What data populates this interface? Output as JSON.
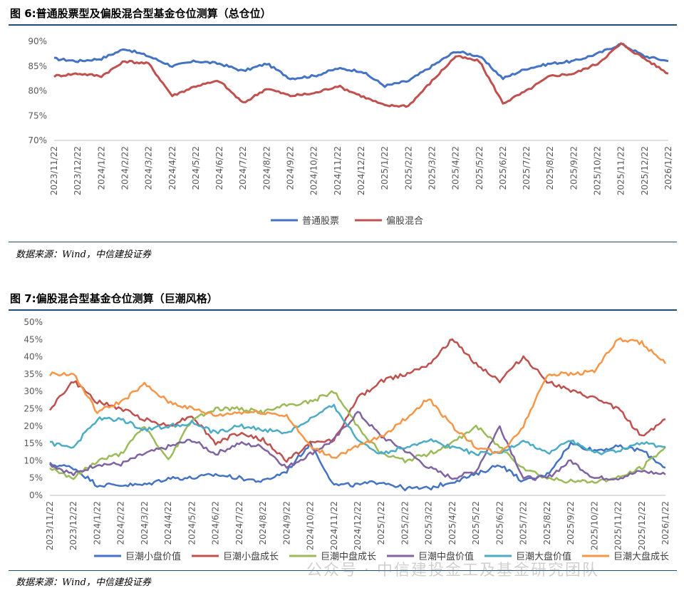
{
  "figures": {
    "fig6_title": "图 6:普通股票型及偏股混合型基金仓位测算（总仓位）",
    "fig7_title": "图 7:偏股混合型基金仓位测算（巨潮风格）",
    "source_text": "数据来源：Wind，中信建投证券"
  },
  "watermark": "公众号 · 中信建投金工及基金研究团队",
  "chart_data": [
    {
      "type": "line",
      "title": "图 6:普通股票型及偏股混合型基金仓位测算（总仓位）",
      "x": [
        "2023/11/22",
        "2023/12/22",
        "2024/1/22",
        "2024/2/22",
        "2024/3/22",
        "2024/4/22",
        "2024/5/22",
        "2024/6/22",
        "2024/7/22",
        "2024/8/22",
        "2024/9/22",
        "2024/10/22",
        "2024/11/22",
        "2024/12/22",
        "2025/1/22",
        "2025/2/22",
        "2025/3/22",
        "2025/4/22",
        "2025/5/22",
        "2025/6/22",
        "2025/7/22",
        "2025/8/22",
        "2025/9/22",
        "2025/10/22",
        "2025/11/22",
        "2025/12/22",
        "2026/1/22"
      ],
      "y_ticks": [
        "70%",
        "75%",
        "80%",
        "85%",
        "90%"
      ],
      "ylim": [
        70,
        90
      ],
      "legend_position": "bottom",
      "series": [
        {
          "name": "普通股票",
          "color": "#4472c4",
          "values": [
            86.5,
            86.0,
            86.5,
            88.5,
            87.0,
            85.0,
            86.0,
            85.5,
            84.0,
            85.5,
            82.5,
            83.0,
            84.5,
            84.0,
            81.0,
            82.0,
            85.0,
            88.0,
            87.0,
            82.5,
            84.5,
            85.5,
            86.0,
            87.5,
            89.5,
            87.0,
            86.0
          ]
        },
        {
          "name": "偏股混合",
          "color": "#c0504d",
          "values": [
            83.0,
            83.5,
            83.0,
            86.0,
            85.5,
            79.0,
            81.0,
            82.0,
            77.5,
            80.5,
            79.0,
            79.5,
            81.0,
            79.0,
            77.0,
            77.0,
            82.0,
            87.0,
            86.0,
            77.5,
            80.0,
            83.0,
            83.5,
            85.5,
            89.5,
            86.5,
            83.5
          ]
        }
      ]
    },
    {
      "type": "line",
      "title": "图 7:偏股混合型基金仓位测算（巨潮风格）",
      "x": [
        "2023/11/22",
        "2023/12/22",
        "2024/1/22",
        "2024/2/22",
        "2024/3/22",
        "2024/4/22",
        "2024/5/22",
        "2024/6/22",
        "2024/7/22",
        "2024/8/22",
        "2024/9/22",
        "2024/10/22",
        "2024/11/22",
        "2024/12/22",
        "2025/1/22",
        "2025/2/22",
        "2025/3/22",
        "2025/4/22",
        "2025/5/22",
        "2025/6/22",
        "2025/7/22",
        "2025/8/22",
        "2025/9/22",
        "2025/10/22",
        "2025/11/22",
        "2025/12/22",
        "2026/1/22"
      ],
      "y_ticks": [
        "0%",
        "5%",
        "10%",
        "15%",
        "20%",
        "25%",
        "30%",
        "35%",
        "40%",
        "45%",
        "50%"
      ],
      "ylim": [
        0,
        50
      ],
      "legend_position": "bottom",
      "series": [
        {
          "name": "巨潮小盘价值",
          "color": "#4472c4",
          "values": [
            9,
            8,
            3,
            3,
            3,
            5,
            5,
            6,
            5,
            4,
            7,
            15,
            3,
            3,
            4,
            2,
            2,
            4,
            6,
            9,
            4,
            6,
            15,
            13,
            14,
            13,
            8
          ]
        },
        {
          "name": "巨潮小盘成长",
          "color": "#c0504d",
          "values": [
            25,
            33,
            27,
            25,
            22,
            20,
            23,
            15,
            18,
            16,
            10,
            15,
            16,
            28,
            33,
            35,
            38,
            45,
            38,
            33,
            40,
            33,
            30,
            28,
            25,
            17,
            22
          ]
        },
        {
          "name": "巨潮中盘成长",
          "color": "#9bbb59",
          "values": [
            8,
            5,
            10,
            12,
            20,
            10,
            22,
            25,
            25,
            24,
            26,
            27,
            30,
            20,
            12,
            10,
            12,
            15,
            20,
            14,
            8,
            5,
            4,
            4,
            5,
            8,
            14
          ]
        },
        {
          "name": "巨潮中盘价值",
          "color": "#8064a2",
          "values": [
            9,
            6,
            9,
            9,
            12,
            14,
            16,
            12,
            15,
            14,
            8,
            12,
            16,
            24,
            17,
            13,
            8,
            5,
            7,
            20,
            5,
            5,
            10,
            5,
            5,
            7,
            6
          ]
        },
        {
          "name": "巨潮大盘价值",
          "color": "#4bacc6",
          "values": [
            15,
            14,
            22,
            22,
            19,
            20,
            21,
            18,
            20,
            19,
            18,
            22,
            26,
            16,
            12,
            14,
            16,
            14,
            12,
            12,
            16,
            12,
            16,
            12,
            13,
            15,
            14
          ]
        },
        {
          "name": "巨潮大盘成长",
          "color": "#f79646",
          "values": [
            35,
            35,
            24,
            27,
            32,
            27,
            25,
            23,
            24,
            24,
            23,
            14,
            11,
            14,
            17,
            22,
            28,
            20,
            14,
            12,
            20,
            35,
            35,
            36,
            45,
            44,
            38
          ]
        }
      ]
    }
  ]
}
